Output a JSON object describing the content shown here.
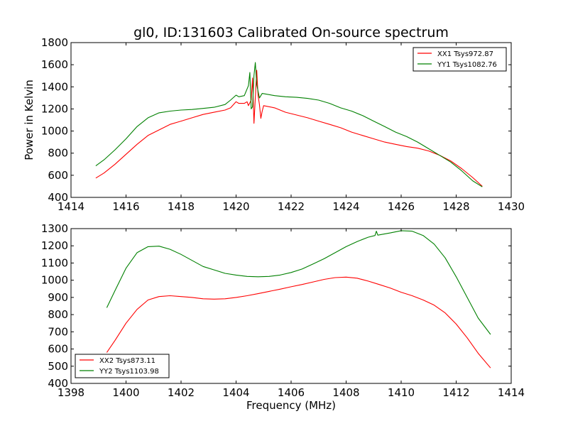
{
  "chart_data": [
    {
      "type": "line",
      "title": "gl0, ID:131603 Calibrated On-source spectrum",
      "xlabel": "",
      "ylabel": "Power in Kelvin",
      "xlim": [
        1414,
        1430
      ],
      "ylim": [
        400,
        1800
      ],
      "xticks": [
        1414,
        1416,
        1418,
        1420,
        1422,
        1424,
        1426,
        1428,
        1430
      ],
      "yticks": [
        400,
        600,
        800,
        1000,
        1200,
        1400,
        1600,
        1800
      ],
      "grid": false,
      "legend_position": "top-right",
      "series": [
        {
          "name": "XX1 Tsys972.87",
          "color": "#ff0000",
          "points": [
            [
              1414.9,
              575
            ],
            [
              1415.2,
              620
            ],
            [
              1415.6,
              700
            ],
            [
              1416.0,
              790
            ],
            [
              1416.4,
              880
            ],
            [
              1416.8,
              960
            ],
            [
              1417.2,
              1010
            ],
            [
              1417.6,
              1060
            ],
            [
              1418.0,
              1090
            ],
            [
              1418.4,
              1120
            ],
            [
              1418.8,
              1150
            ],
            [
              1419.2,
              1170
            ],
            [
              1419.6,
              1190
            ],
            [
              1419.8,
              1210
            ],
            [
              1420.0,
              1265
            ],
            [
              1420.1,
              1250
            ],
            [
              1420.3,
              1250
            ],
            [
              1420.4,
              1265
            ],
            [
              1420.45,
              1230
            ],
            [
              1420.55,
              1280
            ],
            [
              1420.6,
              1480
            ],
            [
              1420.65,
              1070
            ],
            [
              1420.7,
              1300
            ],
            [
              1420.75,
              1550
            ],
            [
              1420.8,
              1320
            ],
            [
              1420.85,
              1240
            ],
            [
              1420.9,
              1115
            ],
            [
              1420.95,
              1180
            ],
            [
              1421.0,
              1230
            ],
            [
              1421.4,
              1210
            ],
            [
              1421.8,
              1170
            ],
            [
              1422.2,
              1145
            ],
            [
              1422.6,
              1120
            ],
            [
              1423.0,
              1090
            ],
            [
              1423.4,
              1060
            ],
            [
              1423.8,
              1030
            ],
            [
              1424.2,
              990
            ],
            [
              1424.6,
              960
            ],
            [
              1425.0,
              930
            ],
            [
              1425.4,
              900
            ],
            [
              1425.8,
              880
            ],
            [
              1426.2,
              860
            ],
            [
              1426.6,
              845
            ],
            [
              1427.0,
              820
            ],
            [
              1427.4,
              780
            ],
            [
              1427.8,
              730
            ],
            [
              1428.2,
              660
            ],
            [
              1428.6,
              580
            ],
            [
              1428.95,
              500
            ]
          ]
        },
        {
          "name": "YY1 Tsys1082.76",
          "color": "#008000",
          "points": [
            [
              1414.9,
              685
            ],
            [
              1415.2,
              740
            ],
            [
              1415.6,
              830
            ],
            [
              1416.0,
              930
            ],
            [
              1416.4,
              1040
            ],
            [
              1416.8,
              1120
            ],
            [
              1417.2,
              1165
            ],
            [
              1417.6,
              1180
            ],
            [
              1418.0,
              1190
            ],
            [
              1418.4,
              1195
            ],
            [
              1418.8,
              1205
            ],
            [
              1419.2,
              1215
            ],
            [
              1419.6,
              1240
            ],
            [
              1419.8,
              1280
            ],
            [
              1420.0,
              1325
            ],
            [
              1420.1,
              1310
            ],
            [
              1420.3,
              1320
            ],
            [
              1420.45,
              1410
            ],
            [
              1420.5,
              1530
            ],
            [
              1420.55,
              1200
            ],
            [
              1420.6,
              1220
            ],
            [
              1420.65,
              1500
            ],
            [
              1420.7,
              1620
            ],
            [
              1420.75,
              1420
            ],
            [
              1420.85,
              1300
            ],
            [
              1420.95,
              1340
            ],
            [
              1421.4,
              1320
            ],
            [
              1421.8,
              1310
            ],
            [
              1422.2,
              1305
            ],
            [
              1422.6,
              1295
            ],
            [
              1423.0,
              1280
            ],
            [
              1423.4,
              1250
            ],
            [
              1423.8,
              1210
            ],
            [
              1424.2,
              1180
            ],
            [
              1424.6,
              1140
            ],
            [
              1425.0,
              1090
            ],
            [
              1425.4,
              1040
            ],
            [
              1425.8,
              990
            ],
            [
              1426.2,
              950
            ],
            [
              1426.6,
              900
            ],
            [
              1427.0,
              840
            ],
            [
              1427.4,
              780
            ],
            [
              1427.8,
              720
            ],
            [
              1428.2,
              640
            ],
            [
              1428.6,
              550
            ],
            [
              1428.95,
              495
            ]
          ]
        }
      ]
    },
    {
      "type": "line",
      "title": "",
      "xlabel": "Frequency (MHz)",
      "ylabel": "",
      "xlim": [
        1398,
        1414
      ],
      "ylim": [
        400,
        1300
      ],
      "xticks": [
        1398,
        1400,
        1402,
        1404,
        1406,
        1408,
        1410,
        1412,
        1414
      ],
      "yticks": [
        400,
        500,
        600,
        700,
        800,
        900,
        1000,
        1100,
        1200,
        1300
      ],
      "grid": false,
      "legend_position": "bottom-left",
      "series": [
        {
          "name": "XX2 Tsys873.11",
          "color": "#ff0000",
          "points": [
            [
              1399.3,
              580
            ],
            [
              1399.6,
              650
            ],
            [
              1400.0,
              750
            ],
            [
              1400.4,
              830
            ],
            [
              1400.8,
              885
            ],
            [
              1401.2,
              905
            ],
            [
              1401.6,
              910
            ],
            [
              1402.0,
              905
            ],
            [
              1402.4,
              900
            ],
            [
              1402.8,
              892
            ],
            [
              1403.2,
              890
            ],
            [
              1403.6,
              892
            ],
            [
              1404.0,
              900
            ],
            [
              1404.4,
              910
            ],
            [
              1404.8,
              922
            ],
            [
              1405.2,
              935
            ],
            [
              1405.6,
              948
            ],
            [
              1406.0,
              962
            ],
            [
              1406.4,
              975
            ],
            [
              1406.8,
              990
            ],
            [
              1407.2,
              1005
            ],
            [
              1407.6,
              1015
            ],
            [
              1408.0,
              1018
            ],
            [
              1408.4,
              1012
            ],
            [
              1408.8,
              995
            ],
            [
              1409.2,
              975
            ],
            [
              1409.6,
              955
            ],
            [
              1410.0,
              930
            ],
            [
              1410.4,
              910
            ],
            [
              1410.8,
              885
            ],
            [
              1411.2,
              855
            ],
            [
              1411.6,
              810
            ],
            [
              1412.0,
              745
            ],
            [
              1412.4,
              665
            ],
            [
              1412.8,
              575
            ],
            [
              1413.25,
              490
            ]
          ]
        },
        {
          "name": "YY2 Tsys1103.98",
          "color": "#008000",
          "points": [
            [
              1399.3,
              840
            ],
            [
              1399.6,
              940
            ],
            [
              1400.0,
              1070
            ],
            [
              1400.4,
              1160
            ],
            [
              1400.8,
              1195
            ],
            [
              1401.2,
              1198
            ],
            [
              1401.6,
              1180
            ],
            [
              1402.0,
              1150
            ],
            [
              1402.4,
              1115
            ],
            [
              1402.8,
              1080
            ],
            [
              1403.2,
              1060
            ],
            [
              1403.6,
              1040
            ],
            [
              1404.0,
              1030
            ],
            [
              1404.4,
              1022
            ],
            [
              1404.8,
              1020
            ],
            [
              1405.2,
              1022
            ],
            [
              1405.6,
              1030
            ],
            [
              1406.0,
              1045
            ],
            [
              1406.4,
              1065
            ],
            [
              1406.8,
              1095
            ],
            [
              1407.2,
              1125
            ],
            [
              1407.6,
              1160
            ],
            [
              1408.0,
              1195
            ],
            [
              1408.4,
              1225
            ],
            [
              1408.8,
              1250
            ],
            [
              1409.05,
              1260
            ],
            [
              1409.1,
              1285
            ],
            [
              1409.15,
              1262
            ],
            [
              1409.6,
              1275
            ],
            [
              1410.0,
              1288
            ],
            [
              1410.4,
              1285
            ],
            [
              1410.8,
              1260
            ],
            [
              1411.2,
              1210
            ],
            [
              1411.6,
              1130
            ],
            [
              1412.0,
              1020
            ],
            [
              1412.4,
              900
            ],
            [
              1412.8,
              780
            ],
            [
              1413.25,
              685
            ]
          ]
        }
      ]
    }
  ]
}
